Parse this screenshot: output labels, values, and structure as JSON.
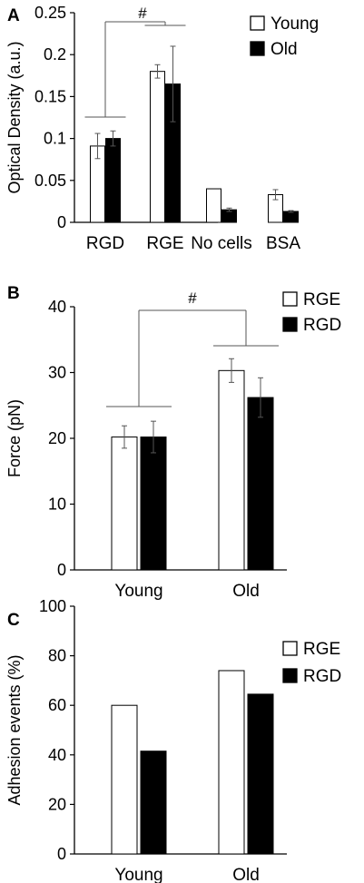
{
  "colors": {
    "open_bar": "#ffffff",
    "filled_bar": "#000000",
    "axis": "#000000",
    "error": "#555555"
  },
  "chart_data": [
    {
      "panel": "A",
      "type": "bar",
      "ylabel": "Optical Density (a.u.)",
      "ylim": [
        0,
        0.25
      ],
      "yticks": [
        "0",
        "0.05",
        "0.1",
        "0.15",
        "0.2",
        "0.25"
      ],
      "categories": [
        "RGD",
        "RGE",
        "No cells",
        "BSA"
      ],
      "series": [
        {
          "name": "Young",
          "fill": "open",
          "values": [
            0.091,
            0.18,
            0.04,
            0.033
          ],
          "errors": [
            0.015,
            0.008,
            0,
            0.006
          ]
        },
        {
          "name": "Old",
          "fill": "filled",
          "values": [
            0.1,
            0.165,
            0.015,
            0.013
          ],
          "errors": [
            0.009,
            0.045,
            0.002,
            0.001
          ]
        }
      ],
      "legend": "top-right",
      "significance": "#"
    },
    {
      "panel": "B",
      "type": "bar",
      "ylabel": "Force (pN)",
      "ylim": [
        0,
        40
      ],
      "yticks": [
        "0",
        "10",
        "20",
        "30",
        "40"
      ],
      "categories": [
        "Young",
        "Old"
      ],
      "series": [
        {
          "name": "RGE",
          "fill": "open",
          "values": [
            20.2,
            30.3
          ],
          "errors": [
            1.7,
            1.8
          ]
        },
        {
          "name": "RGD",
          "fill": "filled",
          "values": [
            20.2,
            26.2
          ],
          "errors": [
            2.4,
            3.0
          ]
        }
      ],
      "legend": "top-right",
      "significance": "#"
    },
    {
      "panel": "C",
      "type": "bar",
      "ylabel": "Adhesion events (%)",
      "ylim": [
        0,
        100
      ],
      "yticks": [
        "0",
        "20",
        "40",
        "60",
        "80",
        "100"
      ],
      "categories": [
        "Young",
        "Old"
      ],
      "series": [
        {
          "name": "RGE",
          "fill": "open",
          "values": [
            60,
            74
          ]
        },
        {
          "name": "RGD",
          "fill": "filled",
          "values": [
            41.5,
            64.5
          ]
        }
      ],
      "legend": "top-right"
    }
  ]
}
